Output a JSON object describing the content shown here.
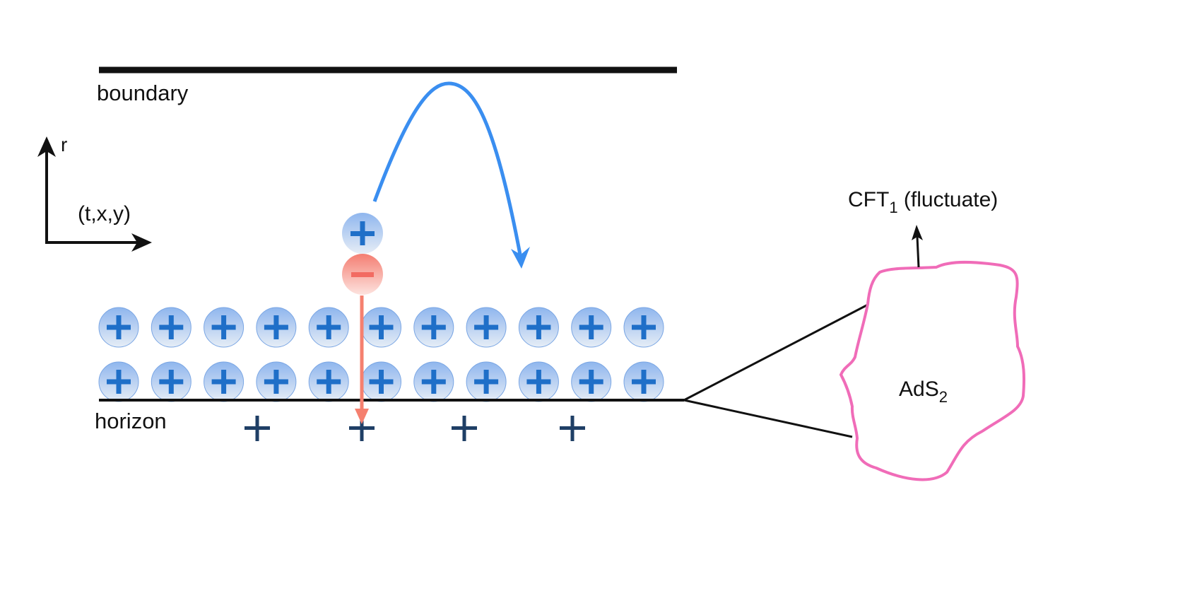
{
  "labels": {
    "boundary": "boundary",
    "horizon": "horizon",
    "r_axis": "r",
    "txy_axis": "(t,x,y)",
    "cft_main": "CFT",
    "cft_sub": "1",
    "cft_note": " (fluctuate)",
    "ads_main": "AdS",
    "ads_sub": "2"
  },
  "particles": {
    "row_count": 2,
    "per_row": 11,
    "horizon_plus_count": 4,
    "pair": [
      "+",
      "−"
    ]
  },
  "colors": {
    "line": "#111111",
    "positive_fill_top": "#8fb6ee",
    "positive_fill_bottom": "#e4ebf5",
    "positive_sign": "#1f6fc8",
    "negative_fill": "#f47e72",
    "negative_arrow": "#f5806f",
    "curve": "#3a8ef0",
    "blob": "#f06cb8",
    "horizon_plus": "#1f3f66"
  }
}
